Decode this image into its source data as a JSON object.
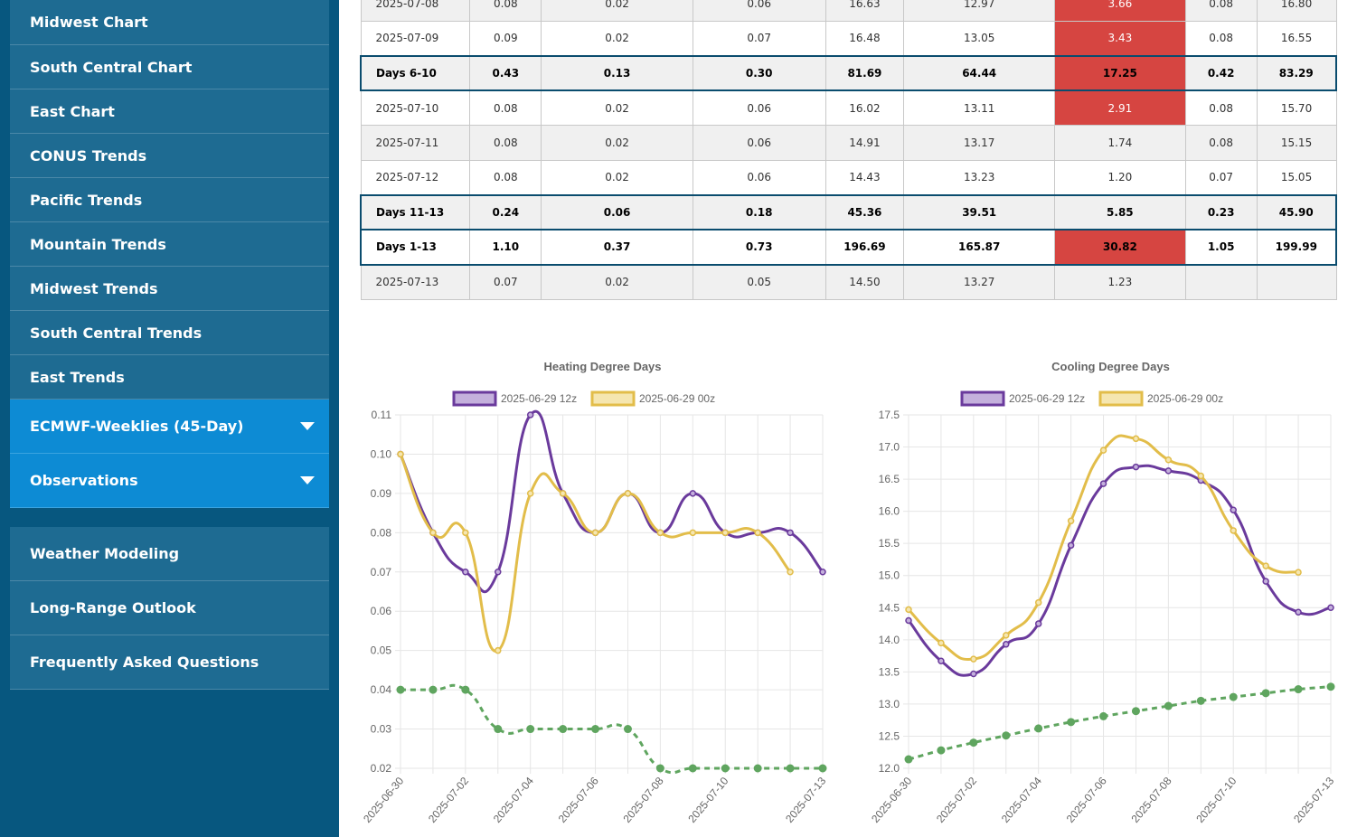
{
  "sidebar": {
    "items": [
      "Midwest Chart",
      "South Central Chart",
      "East Chart",
      "CONUS Trends",
      "Pacific Trends",
      "Mountain Trends",
      "Midwest Trends",
      "South Central Trends",
      "East Trends"
    ],
    "expandables": [
      "ECMWF-Weeklies (45-Day)",
      "Observations"
    ],
    "lower_items": [
      "Weather Modeling",
      "Long-Range Outlook",
      "Frequently Asked Questions"
    ]
  },
  "table": {
    "rows": [
      {
        "type": "day",
        "label": "2025-07-08",
        "cells": [
          "0.08",
          "0.02",
          "0.06",
          "16.63",
          "12.97",
          "3.66",
          "0.08",
          "16.80"
        ],
        "hot": [
          5
        ]
      },
      {
        "type": "day",
        "label": "2025-07-09",
        "cells": [
          "0.09",
          "0.02",
          "0.07",
          "16.48",
          "13.05",
          "3.43",
          "0.08",
          "16.55"
        ],
        "hot": [
          5
        ]
      },
      {
        "type": "summary",
        "label": "Days 6-10",
        "cells": [
          "0.43",
          "0.13",
          "0.30",
          "81.69",
          "64.44",
          "17.25",
          "0.42",
          "83.29"
        ],
        "hot": [
          5
        ]
      },
      {
        "type": "day",
        "label": "2025-07-10",
        "cells": [
          "0.08",
          "0.02",
          "0.06",
          "16.02",
          "13.11",
          "2.91",
          "0.08",
          "15.70"
        ],
        "hot": [
          5
        ]
      },
      {
        "type": "day",
        "label": "2025-07-11",
        "cells": [
          "0.08",
          "0.02",
          "0.06",
          "14.91",
          "13.17",
          "1.74",
          "0.08",
          "15.15"
        ],
        "hot": []
      },
      {
        "type": "day",
        "label": "2025-07-12",
        "cells": [
          "0.08",
          "0.02",
          "0.06",
          "14.43",
          "13.23",
          "1.20",
          "0.07",
          "15.05"
        ],
        "hot": []
      },
      {
        "type": "summary",
        "label": "Days 11-13",
        "cells": [
          "0.24",
          "0.06",
          "0.18",
          "45.36",
          "39.51",
          "5.85",
          "0.23",
          "45.90"
        ],
        "hot": []
      },
      {
        "type": "summary",
        "label": "Days 1-13",
        "cells": [
          "1.10",
          "0.37",
          "0.73",
          "196.69",
          "165.87",
          "30.82",
          "1.05",
          "199.99"
        ],
        "hot": [
          5
        ]
      },
      {
        "type": "day",
        "label": "2025-07-13",
        "cells": [
          "0.07",
          "0.02",
          "0.05",
          "14.50",
          "13.27",
          "1.23",
          "",
          ""
        ],
        "hot": []
      }
    ]
  },
  "chart_data": [
    {
      "type": "line",
      "title": "Heating Degree Days",
      "x": [
        "2025-06-30",
        "2025-07-01",
        "2025-07-02",
        "2025-07-03",
        "2025-07-04",
        "2025-07-05",
        "2025-07-06",
        "2025-07-07",
        "2025-07-08",
        "2025-07-09",
        "2025-07-10",
        "2025-07-11",
        "2025-07-12",
        "2025-07-13"
      ],
      "x_tick_labels": [
        "2025-06-30",
        "2025-07-02",
        "2025-07-04",
        "2025-07-06",
        "2025-07-08",
        "2025-07-10",
        "2025-07-13"
      ],
      "ylim": [
        0.02,
        0.11
      ],
      "y_ticks": [
        "0.02",
        "0.03",
        "0.04",
        "0.05",
        "0.06",
        "0.07",
        "0.08",
        "0.09",
        "0.10",
        "0.11"
      ],
      "grid": true,
      "legend_position": "top",
      "series": [
        {
          "name": "2025-06-29 12z",
          "color": "#6a3a9c",
          "fill": "#c4b0dc",
          "values": [
            0.1,
            0.08,
            0.07,
            0.07,
            0.11,
            0.09,
            0.08,
            0.09,
            0.08,
            0.09,
            0.08,
            0.08,
            0.08,
            0.07
          ]
        },
        {
          "name": "2025-06-29 00z",
          "color": "#e2bd4a",
          "fill": "#f5e6b0",
          "values": [
            0.1,
            0.08,
            0.08,
            0.05,
            0.09,
            0.09,
            0.08,
            0.09,
            0.08,
            0.08,
            0.08,
            0.08,
            0.07,
            null
          ]
        },
        {
          "color": "#5fa55f",
          "dashed": true,
          "values": [
            0.04,
            0.04,
            0.04,
            0.03,
            0.03,
            0.03,
            0.03,
            0.03,
            0.02,
            0.02,
            0.02,
            0.02,
            0.02,
            0.02
          ]
        }
      ]
    },
    {
      "type": "line",
      "title": "Cooling Degree Days",
      "x": [
        "2025-06-30",
        "2025-07-01",
        "2025-07-02",
        "2025-07-03",
        "2025-07-04",
        "2025-07-05",
        "2025-07-06",
        "2025-07-07",
        "2025-07-08",
        "2025-07-09",
        "2025-07-10",
        "2025-07-11",
        "2025-07-12",
        "2025-07-13"
      ],
      "x_tick_labels": [
        "2025-06-30",
        "2025-07-02",
        "2025-07-04",
        "2025-07-06",
        "2025-07-08",
        "2025-07-10",
        "2025-07-13"
      ],
      "ylim": [
        12.0,
        17.5
      ],
      "y_ticks": [
        "12.0",
        "12.5",
        "13.0",
        "13.5",
        "14.0",
        "14.5",
        "15.0",
        "15.5",
        "16.0",
        "16.5",
        "17.0",
        "17.5"
      ],
      "grid": true,
      "legend_position": "top",
      "series": [
        {
          "name": "2025-06-29 12z",
          "color": "#6a3a9c",
          "fill": "#c4b0dc",
          "values": [
            14.3,
            13.67,
            13.47,
            13.93,
            14.25,
            15.47,
            16.43,
            16.69,
            16.63,
            16.48,
            16.02,
            14.91,
            14.43,
            14.5
          ]
        },
        {
          "name": "2025-06-29 00z",
          "color": "#e2bd4a",
          "fill": "#f5e6b0",
          "values": [
            14.47,
            13.95,
            13.7,
            14.07,
            14.58,
            15.85,
            16.95,
            17.13,
            16.8,
            16.55,
            15.7,
            15.15,
            15.05,
            null
          ]
        },
        {
          "color": "#5fa55f",
          "dashed": true,
          "values": [
            12.14,
            12.28,
            12.4,
            12.51,
            12.62,
            12.72,
            12.81,
            12.89,
            12.97,
            13.05,
            13.11,
            13.17,
            13.23,
            13.27
          ]
        }
      ]
    }
  ]
}
